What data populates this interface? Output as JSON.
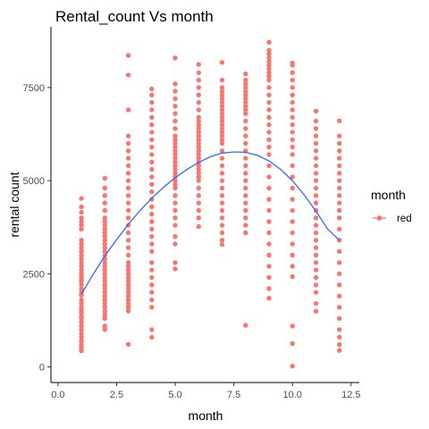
{
  "chart_data": {
    "type": "scatter",
    "title": "Rental_count Vs month",
    "xlabel": "month",
    "ylabel": "rental count",
    "xlim": [
      -0.3,
      12.85
    ],
    "ylim": [
      -420,
      9130
    ],
    "x_ticks": [
      0.0,
      2.5,
      5.0,
      7.5,
      10.0,
      12.5
    ],
    "x_tick_labels": [
      "0.0",
      "2.5",
      "5.0",
      "7.5",
      "10.0",
      "12.5"
    ],
    "y_ticks": [
      0,
      2500,
      5000,
      7500
    ],
    "y_tick_labels": [
      "0",
      "2500",
      "5000",
      "7500"
    ],
    "grid": false,
    "legend_placement": "right",
    "legend": {
      "title": "month",
      "entries": [
        {
          "label": "red",
          "color": "#F8766D"
        }
      ]
    },
    "colors": {
      "points": "#F8766D",
      "smooth_line": "#3366FF",
      "axis": "#000000",
      "tick_text": "#4d4d4d"
    },
    "series": [
      {
        "name": "red",
        "kind": "points",
        "points_by_month": [
          {
            "month": 1,
            "values": [
              431,
              520,
              600,
              700,
              801,
              900,
              1000,
              1100,
              1204,
              1300,
              1360,
              1450,
              1520,
              1600,
              1700,
              1800,
              1927,
              2000,
              2100,
              2210,
              2300,
              2368,
              2420,
              2500,
              2600,
              2700,
              2800,
              2900,
              3000,
              3100,
              3200,
              3300,
              3400,
              3700,
              3800,
              3900,
              4000,
              4150,
              4300,
              4521
            ]
          },
          {
            "month": 2,
            "values": [
              1005,
              1100,
              1300,
              1400,
              1500,
              1600,
              1700,
              1800,
              1900,
              2000,
              2100,
              2200,
              2300,
              2400,
              2500,
              2600,
              2700,
              2800,
              2900,
              3000,
              3100,
              3200,
              3300,
              3400,
              3500,
              3600,
              3700,
              3800,
              3900,
              4000,
              4200,
              4400,
              4600,
              4800,
              5062
            ]
          },
          {
            "month": 3,
            "values": [
              605,
              1500,
              1600,
              1700,
              1800,
              1900,
              2000,
              2100,
              2200,
              2300,
              2400,
              2500,
              2600,
              2700,
              2800,
              3000,
              3200,
              3400,
              3600,
              3800,
              4000,
              4200,
              4400,
              4600,
              4800,
              5000,
              5200,
              5400,
              5600,
              5800,
              6000,
              6200,
              6900,
              7836,
              8362
            ]
          },
          {
            "month": 4,
            "values": [
              795,
              1000,
              1600,
              1800,
              2000,
              2200,
              2400,
              2600,
              2800,
              3100,
              3300,
              3500,
              3700,
              3900,
              4100,
              4300,
              4500,
              4700,
              4900,
              5100,
              5300,
              5500,
              5700,
              5900,
              6100,
              6300,
              6500,
              6700,
              6900,
              7100,
              7300,
              7460
            ]
          },
          {
            "month": 5,
            "values": [
              2633,
              2800,
              3300,
              3500,
              3800,
              4000,
              4200,
              4400,
              4600,
              4800,
              4900,
              5000,
              5100,
              5200,
              5300,
              5400,
              5500,
              5600,
              5700,
              5800,
              5900,
              6000,
              6100,
              6200,
              6400,
              6600,
              6800,
              7000,
              7200,
              7400,
              7600,
              8294
            ]
          },
          {
            "month": 6,
            "values": [
              3767,
              4000,
              4200,
              4400,
              4600,
              4800,
              5000,
              5100,
              5200,
              5300,
              5400,
              5500,
              5600,
              5700,
              5800,
              5900,
              6000,
              6100,
              6200,
              6300,
              6400,
              6500,
              6600,
              6700,
              6900,
              7100,
              7300,
              7500,
              7700,
              7900,
              8120
            ]
          },
          {
            "month": 7,
            "values": [
              3285,
              3400,
              3600,
              3800,
              4000,
              4200,
              4400,
              4600,
              4800,
              5000,
              5200,
              5400,
              5600,
              5800,
              6000,
              6100,
              6200,
              6300,
              6400,
              6500,
              6600,
              6700,
              6800,
              6900,
              7000,
              7100,
              7200,
              7300,
              7400,
              7500,
              7700,
              8173
            ]
          },
          {
            "month": 8,
            "values": [
              1115,
              3600,
              3800,
              4000,
              4200,
              4400,
              4600,
              4800,
              5000,
              5200,
              5400,
              5600,
              5800,
              6000,
              6200,
              6400,
              6600,
              6800,
              6900,
              7000,
              7100,
              7200,
              7300,
              7400,
              7500,
              7600,
              7700,
              7865
            ]
          },
          {
            "month": 9,
            "values": [
              1842,
              2100,
              2400,
              2700,
              3000,
              3300,
              3600,
              3900,
              4200,
              4500,
              4800,
              5100,
              5400,
              5700,
              5900,
              6100,
              6300,
              6500,
              6700,
              6900,
              7100,
              7300,
              7500,
              7700,
              7800,
              7900,
              8000,
              8100,
              8200,
              8300,
              8400,
              8500,
              8714
            ]
          },
          {
            "month": 10,
            "values": [
              22,
              627,
              1096,
              2424,
              2700,
              3000,
              3300,
              3600,
              3900,
              4200,
              4500,
              4800,
              5100,
              5400,
              5700,
              5900,
              6100,
              6300,
              6500,
              6700,
              6900,
              7100,
              7300,
              7500,
              7700,
              7900,
              8100,
              8156
            ]
          },
          {
            "month": 11,
            "values": [
              1495,
              1700,
              2000,
              2200,
              2400,
              2600,
              2800,
              3000,
              3200,
              3400,
              3600,
              3800,
              4000,
              4200,
              4400,
              4600,
              4800,
              5000,
              5200,
              5400,
              5600,
              5800,
              6000,
              6200,
              6400,
              6600,
              6867
            ]
          },
          {
            "month": 12,
            "values": [
              441,
              600,
              800,
              1000,
              1300,
              1600,
              1900,
              2200,
              2500,
              2800,
              3100,
              3400,
              3700,
              4000,
              4200,
              4400,
              4600,
              4800,
              5000,
              5200,
              5400,
              5600,
              5800,
              6000,
              6200,
              6606
            ]
          }
        ]
      },
      {
        "name": "smooth",
        "kind": "line",
        "x": [
          1,
          1.5,
          2,
          2.5,
          3,
          3.5,
          4,
          4.5,
          5,
          5.5,
          6,
          6.5,
          7,
          7.5,
          8,
          8.5,
          9,
          9.5,
          10,
          10.5,
          11,
          11.5,
          12
        ],
        "y": [
          1950,
          2480,
          2980,
          3420,
          3830,
          4200,
          4530,
          4820,
          5080,
          5300,
          5490,
          5640,
          5740,
          5770,
          5760,
          5680,
          5530,
          5300,
          5000,
          4620,
          4180,
          3700,
          3400
        ]
      }
    ]
  }
}
